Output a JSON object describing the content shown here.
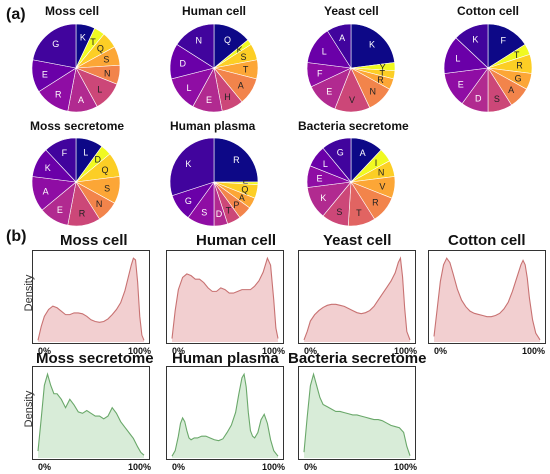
{
  "figure": {
    "panel_a": "(a)",
    "panel_b": "(b)"
  },
  "chart_data": [
    {
      "type": "pie",
      "title": "Moss cell",
      "labels": [
        "K",
        "T",
        "Q",
        "S",
        "N",
        "L",
        "A",
        "R",
        "E",
        "G"
      ],
      "values": [
        7,
        4,
        6,
        7,
        7,
        11,
        11,
        13,
        12,
        22
      ]
    },
    {
      "type": "pie",
      "title": "Human cell",
      "labels": [
        "Q",
        "K",
        "S",
        "T",
        "A",
        "H",
        "E",
        "L",
        "D",
        "N"
      ],
      "values": [
        14,
        2,
        6,
        7,
        10,
        8,
        11,
        13,
        13,
        16
      ]
    },
    {
      "type": "pie",
      "title": "Yeast cell",
      "labels": [
        "K",
        "Y",
        "T",
        "R",
        "N",
        "V",
        "E",
        "F",
        "L",
        "A"
      ],
      "values": [
        23,
        3,
        3,
        4,
        10,
        13,
        12,
        9,
        14,
        9
      ]
    },
    {
      "type": "pie",
      "title": "Cotton cell",
      "labels": [
        "F",
        "T",
        "R",
        "G",
        "A",
        "S",
        "D",
        "E",
        "L",
        "K"
      ],
      "values": [
        16,
        4,
        7,
        6,
        8,
        9,
        10,
        13,
        14,
        13
      ]
    },
    {
      "type": "pie",
      "title": "Moss secretome",
      "labels": [
        "L",
        "D",
        "Q",
        "S",
        "N",
        "R",
        "E",
        "A",
        "K",
        "F"
      ],
      "values": [
        10,
        4,
        9,
        10,
        8,
        12,
        11,
        13,
        11,
        12
      ]
    },
    {
      "type": "pie",
      "title": "Human plasma",
      "labels": [
        "R",
        "E",
        "Q",
        "A",
        "P",
        "T",
        "D",
        "S",
        "G",
        "K"
      ],
      "values": [
        25,
        1,
        5,
        4,
        5,
        5,
        5,
        10,
        10,
        30
      ]
    },
    {
      "type": "pie",
      "title": "Bacteria secretome",
      "labels": [
        "A",
        "I",
        "N",
        "V",
        "R",
        "T",
        "S",
        "K",
        "E",
        "L",
        "G"
      ],
      "values": [
        12,
        5,
        6,
        8,
        10,
        10,
        10,
        12,
        8,
        8,
        11
      ]
    },
    {
      "type": "area",
      "title": "Moss cell",
      "ylabel": "Density",
      "xticks": [
        "0%",
        "100%"
      ],
      "x": [
        0,
        3,
        6,
        10,
        14,
        18,
        22,
        26,
        30,
        34,
        38,
        42,
        46,
        50,
        54,
        58,
        62,
        66,
        70,
        74,
        78,
        82,
        85,
        88,
        90,
        92,
        94,
        96,
        98,
        100
      ],
      "y": [
        0.02,
        0.18,
        0.3,
        0.38,
        0.42,
        0.4,
        0.36,
        0.32,
        0.32,
        0.34,
        0.34,
        0.33,
        0.3,
        0.26,
        0.24,
        0.23,
        0.24,
        0.27,
        0.32,
        0.38,
        0.46,
        0.6,
        0.75,
        0.9,
        0.98,
        0.96,
        0.7,
        0.3,
        0.08,
        0.02
      ]
    },
    {
      "type": "area",
      "title": "Human cell",
      "ylabel": "Density",
      "xticks": [
        "0%",
        "100%"
      ],
      "x": [
        0,
        3,
        6,
        10,
        14,
        18,
        22,
        26,
        30,
        34,
        38,
        42,
        46,
        50,
        54,
        58,
        62,
        66,
        70,
        74,
        78,
        82,
        86,
        90,
        93,
        96,
        98,
        100
      ],
      "y": [
        0.02,
        0.18,
        0.3,
        0.37,
        0.39,
        0.38,
        0.36,
        0.36,
        0.34,
        0.31,
        0.29,
        0.29,
        0.31,
        0.3,
        0.28,
        0.28,
        0.29,
        0.3,
        0.3,
        0.3,
        0.32,
        0.35,
        0.4,
        0.48,
        0.44,
        0.24,
        0.08,
        0.02
      ]
    },
    {
      "type": "area",
      "title": "Yeast cell",
      "ylabel": "Density",
      "xticks": [
        "0%",
        "100%"
      ],
      "x": [
        0,
        3,
        6,
        10,
        14,
        18,
        22,
        26,
        30,
        34,
        38,
        42,
        46,
        50,
        54,
        58,
        62,
        66,
        70,
        74,
        78,
        82,
        86,
        89,
        91,
        93,
        95,
        97,
        100
      ],
      "y": [
        0.02,
        0.1,
        0.2,
        0.26,
        0.3,
        0.33,
        0.35,
        0.36,
        0.36,
        0.35,
        0.34,
        0.32,
        0.3,
        0.28,
        0.27,
        0.28,
        0.3,
        0.34,
        0.4,
        0.46,
        0.52,
        0.58,
        0.66,
        0.76,
        0.8,
        0.62,
        0.32,
        0.1,
        0.02
      ]
    },
    {
      "type": "area",
      "title": "Cotton cell",
      "ylabel": "Density",
      "xticks": [
        "0%",
        "100%"
      ],
      "x": [
        0,
        3,
        6,
        9,
        12,
        15,
        18,
        22,
        26,
        30,
        34,
        38,
        42,
        46,
        50,
        54,
        58,
        62,
        66,
        70,
        74,
        78,
        82,
        84,
        86,
        88,
        90,
        93,
        96,
        100
      ],
      "y": [
        0.05,
        0.3,
        0.55,
        0.7,
        0.76,
        0.72,
        0.62,
        0.48,
        0.38,
        0.32,
        0.28,
        0.26,
        0.25,
        0.24,
        0.23,
        0.23,
        0.24,
        0.26,
        0.3,
        0.36,
        0.46,
        0.58,
        0.7,
        0.74,
        0.7,
        0.58,
        0.4,
        0.2,
        0.08,
        0.02
      ]
    },
    {
      "type": "area",
      "title": "Moss secretome",
      "ylabel": "Density",
      "xticks": [
        "0%",
        "100%"
      ],
      "x": [
        0,
        3,
        6,
        9,
        12,
        15,
        18,
        22,
        26,
        30,
        34,
        38,
        42,
        46,
        50,
        54,
        58,
        62,
        66,
        70,
        74,
        78,
        82,
        86,
        90,
        94,
        97,
        100
      ],
      "y": [
        0.05,
        0.28,
        0.52,
        0.6,
        0.52,
        0.46,
        0.46,
        0.42,
        0.36,
        0.42,
        0.38,
        0.33,
        0.32,
        0.34,
        0.32,
        0.3,
        0.3,
        0.28,
        0.3,
        0.36,
        0.32,
        0.26,
        0.22,
        0.18,
        0.14,
        0.08,
        0.04,
        0.02
      ]
    },
    {
      "type": "area",
      "title": "Human plasma",
      "ylabel": "Density",
      "xticks": [
        "0%",
        "100%"
      ],
      "x": [
        0,
        3,
        6,
        8,
        10,
        12,
        14,
        16,
        18,
        21,
        24,
        28,
        32,
        36,
        40,
        44,
        48,
        52,
        56,
        60,
        63,
        66,
        68,
        70,
        72,
        74,
        76,
        78,
        81,
        84,
        87,
        90,
        93,
        96,
        100
      ],
      "y": [
        0.02,
        0.08,
        0.24,
        0.38,
        0.44,
        0.4,
        0.3,
        0.22,
        0.2,
        0.22,
        0.22,
        0.24,
        0.24,
        0.22,
        0.2,
        0.19,
        0.21,
        0.28,
        0.36,
        0.5,
        0.7,
        0.88,
        0.92,
        0.78,
        0.5,
        0.3,
        0.24,
        0.22,
        0.28,
        0.42,
        0.48,
        0.38,
        0.2,
        0.08,
        0.02
      ]
    },
    {
      "type": "area",
      "title": "Bacteria secretome",
      "ylabel": "Density",
      "xticks": [
        "0%",
        "100%"
      ],
      "x": [
        0,
        3,
        6,
        9,
        12,
        15,
        18,
        22,
        26,
        30,
        34,
        38,
        42,
        46,
        50,
        54,
        58,
        62,
        66,
        70,
        74,
        78,
        82,
        86,
        90,
        94,
        97,
        100
      ],
      "y": [
        0.05,
        0.35,
        0.62,
        0.72,
        0.62,
        0.52,
        0.46,
        0.44,
        0.42,
        0.4,
        0.4,
        0.39,
        0.38,
        0.37,
        0.37,
        0.36,
        0.35,
        0.34,
        0.33,
        0.33,
        0.32,
        0.3,
        0.28,
        0.27,
        0.26,
        0.22,
        0.1,
        0.02
      ]
    }
  ],
  "colors": {
    "pie_palette": [
      "#0d0887",
      "#f0f921",
      "#fcce25",
      "#fca636",
      "#f2844b",
      "#e16462",
      "#cc4778",
      "#b12a90",
      "#8f0da4",
      "#6a00a8",
      "#41049d"
    ],
    "cell_fill": "#f2cfd0",
    "cell_line": "#c87272",
    "secretome_fill": "#d8ecd8",
    "secretome_line": "#6aa86a",
    "slice_edge": "#ffffff",
    "label_light": "#ffffff",
    "label_dark": "#222222"
  }
}
